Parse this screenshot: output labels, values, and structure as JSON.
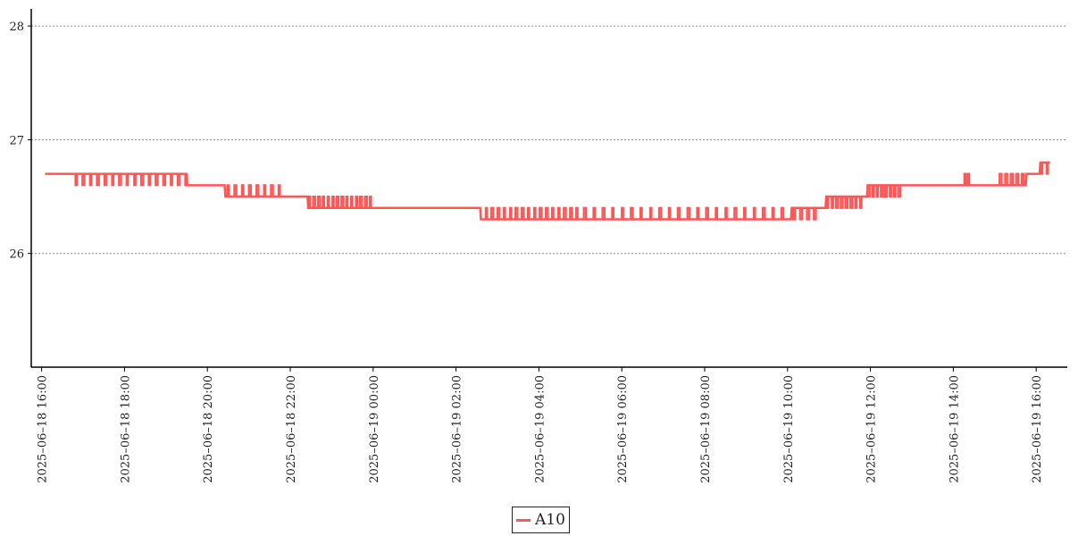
{
  "chart_data": {
    "type": "line",
    "title": "",
    "xlabel": "",
    "ylabel": "",
    "ylim": [
      25,
      28.15
    ],
    "xlim": [
      "2025-06-18 15:45",
      "2025-06-19 16:45"
    ],
    "y_ticks": [
      26,
      27,
      28
    ],
    "y_tick_labels": [
      "26",
      "27",
      "28"
    ],
    "x_ticks": [
      "2025-06-18 16:00",
      "2025-06-18 18:00",
      "2025-06-18 20:00",
      "2025-06-18 22:00",
      "2025-06-19 00:00",
      "2025-06-19 02:00",
      "2025-06-19 04:00",
      "2025-06-19 06:00",
      "2025-06-19 08:00",
      "2025-06-19 10:00",
      "2025-06-19 12:00",
      "2025-06-19 14:00",
      "2025-06-19 16:00"
    ],
    "x_tick_labels": [
      "2025–06–18 16:00",
      "2025–06–18 18:00",
      "2025–06–18 20:00",
      "2025–06–18 22:00",
      "2025–06–19 00:00",
      "2025–06–19 02:00",
      "2025–06–19 04:00",
      "2025–06–19 06:00",
      "2025–06–19 08:00",
      "2025–06–19 10:00",
      "2025–06–19 12:00",
      "2025–06–19 14:00",
      "2025–06–19 16:00"
    ],
    "grid": "horizontal-dotted",
    "legend": "bottom-center",
    "series": [
      {
        "name": "A10",
        "color": "#ff5555",
        "baseline": [
          [
            "2025-06-18 16:05",
            26.7
          ],
          [
            "2025-06-18 19:30",
            26.7
          ],
          [
            "2025-06-18 19:31",
            26.6
          ],
          [
            "2025-06-18 20:25",
            26.6
          ],
          [
            "2025-06-18 20:26",
            26.5
          ],
          [
            "2025-06-18 22:25",
            26.5
          ],
          [
            "2025-06-18 22:26",
            26.4
          ],
          [
            "2025-06-19 02:35",
            26.4
          ],
          [
            "2025-06-19 02:36",
            26.3
          ],
          [
            "2025-06-19 10:05",
            26.3
          ],
          [
            "2025-06-19 10:06",
            26.4
          ],
          [
            "2025-06-19 10:55",
            26.4
          ],
          [
            "2025-06-19 10:56",
            26.5
          ],
          [
            "2025-06-19 11:55",
            26.5
          ],
          [
            "2025-06-19 11:56",
            26.6
          ],
          [
            "2025-06-19 15:45",
            26.6
          ],
          [
            "2025-06-19 15:46",
            26.7
          ],
          [
            "2025-06-19 16:05",
            26.7
          ],
          [
            "2025-06-19 16:06",
            26.8
          ],
          [
            "2025-06-19 16:20",
            26.8
          ]
        ],
        "spikes": [
          {
            "from": "2025-06-18 16:45",
            "to": "2025-06-18 19:35",
            "value": 26.6,
            "count": 16
          },
          {
            "from": "2025-06-18 20:25",
            "to": "2025-06-18 21:50",
            "value": 26.6,
            "count": 8
          },
          {
            "from": "2025-06-18 22:25",
            "to": "2025-06-19 00:00",
            "value": 26.5,
            "count": 14
          },
          {
            "from": "2025-06-19 02:40",
            "to": "2025-06-19 05:00",
            "value": 26.4,
            "count": 16
          },
          {
            "from": "2025-06-19 05:00",
            "to": "2025-06-19 10:00",
            "value": 26.4,
            "count": 22
          },
          {
            "from": "2025-06-19 10:05",
            "to": "2025-06-19 10:45",
            "value": 26.3,
            "count": 4
          },
          {
            "from": "2025-06-19 10:55",
            "to": "2025-06-19 11:50",
            "value": 26.4,
            "count": 8
          },
          {
            "from": "2025-06-19 11:55",
            "to": "2025-06-19 12:45",
            "value": 26.5,
            "count": 8
          },
          {
            "from": "2025-06-19 14:15",
            "to": "2025-06-19 14:25",
            "value": 26.7,
            "count": 2
          },
          {
            "from": "2025-06-19 15:05",
            "to": "2025-06-19 15:45",
            "value": 26.7,
            "count": 5
          },
          {
            "from": "2025-06-19 16:05",
            "to": "2025-06-19 16:20",
            "value": 26.7,
            "count": 2
          }
        ]
      }
    ]
  }
}
